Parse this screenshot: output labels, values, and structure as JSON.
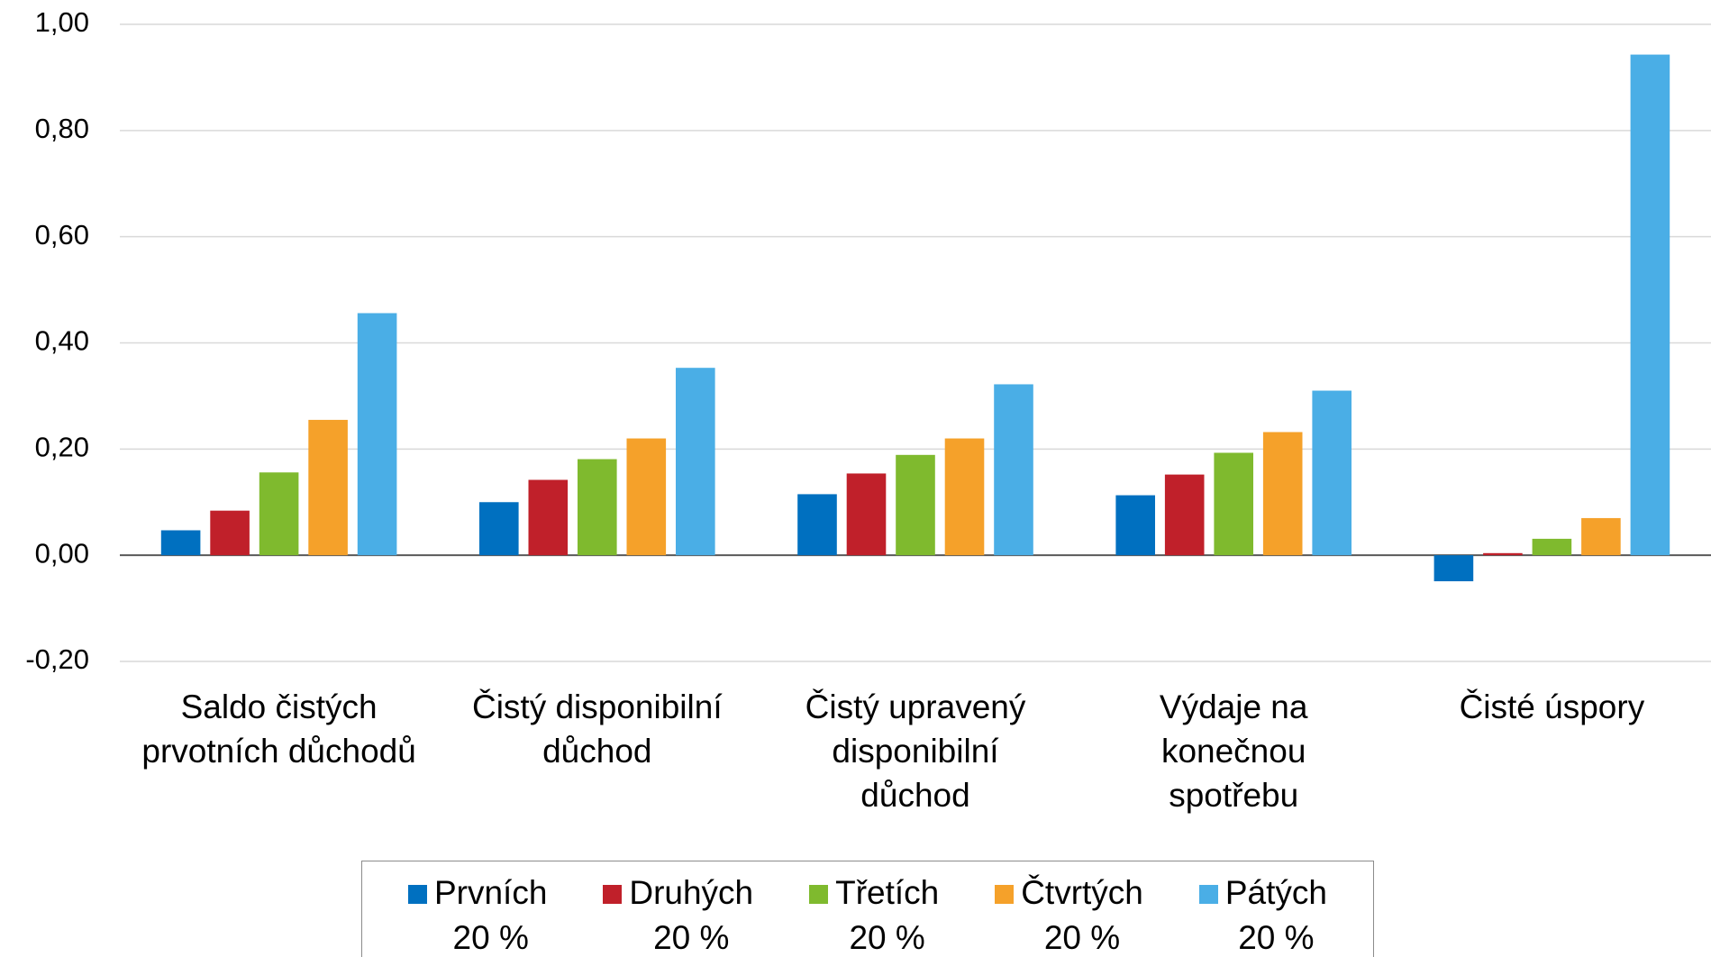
{
  "chart_data": {
    "type": "bar",
    "categories": [
      "Saldo čistých\nprvotních důchodů",
      "Čistý disponibilní\ndůchod",
      "Čistý upravený\ndisponibilní\ndůchod",
      "Výdaje na\nkonečnou\nspotřebu",
      "Čisté úspory"
    ],
    "series": [
      {
        "name": "Prvních\n20 %",
        "color": "#0070c0",
        "values": [
          0.047,
          0.1,
          0.115,
          0.113,
          -0.049
        ]
      },
      {
        "name": "Druhých\n20 %",
        "color": "#c0202a",
        "values": [
          0.084,
          0.142,
          0.154,
          0.152,
          0.004
        ]
      },
      {
        "name": "Třetích\n20 %",
        "color": "#7fba2e",
        "values": [
          0.156,
          0.181,
          0.189,
          0.193,
          0.031
        ]
      },
      {
        "name": "Čtvrtých\n20 %",
        "color": "#f5a12a",
        "values": [
          0.255,
          0.22,
          0.22,
          0.232,
          0.07
        ]
      },
      {
        "name": "Pátých\n20 %",
        "color": "#4aaee6",
        "values": [
          0.456,
          0.353,
          0.322,
          0.31,
          0.943
        ]
      }
    ],
    "ylim": [
      -0.2,
      1.0
    ],
    "yticks": [
      {
        "value": -0.2,
        "label": "-0,20"
      },
      {
        "value": 0,
        "label": "0,00"
      },
      {
        "value": 0.2,
        "label": "0,20"
      },
      {
        "value": 0.4,
        "label": "0,40"
      },
      {
        "value": 0.6,
        "label": "0,60"
      },
      {
        "value": 0.8,
        "label": "0,80"
      },
      {
        "value": 1.0,
        "label": "1,00"
      }
    ],
    "grid": true
  }
}
